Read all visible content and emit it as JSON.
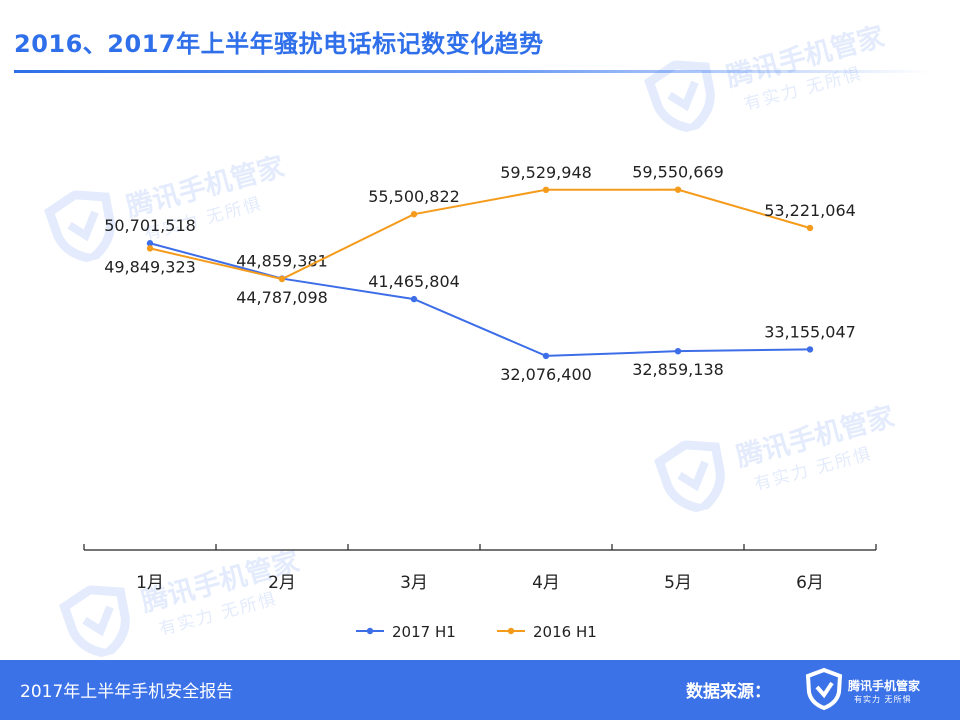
{
  "header": {
    "title": "2016、2017年上半年骚扰电话标记数变化趋势"
  },
  "watermark": {
    "name": "腾讯手机管家",
    "slogan": "有实力 无所惧"
  },
  "chart_data": {
    "type": "line",
    "title": "2016、2017年上半年骚扰电话标记数变化趋势",
    "categories": [
      "1月",
      "2月",
      "3月",
      "4月",
      "5月",
      "6月"
    ],
    "series": [
      {
        "name": "2017 H1",
        "color": "#3d6ee8",
        "values": [
          50701518,
          44859381,
          41465804,
          32076400,
          32859138,
          33155047
        ],
        "labels": [
          "50,701,518",
          "44,859,381",
          "41,465,804",
          "32,076,400",
          "32,859,138",
          "33,155,047"
        ]
      },
      {
        "name": "2016 H1",
        "color": "#f59b1c",
        "values": [
          49849323,
          44787098,
          55500822,
          59529948,
          59550669,
          53221064
        ],
        "labels": [
          "49,849,323",
          "44,787,098",
          "55,500,822",
          "59,529,948",
          "59,550,669",
          "53,221,064"
        ]
      }
    ],
    "ylim": [
      0,
      79000000
    ],
    "grid": false,
    "legend_position": "bottom"
  },
  "footer": {
    "report_name": "2017年上半年手机安全报告",
    "source_label": "数据来源：",
    "brand_name": "腾讯手机管家",
    "brand_slogan": "有实力  无所惧"
  }
}
